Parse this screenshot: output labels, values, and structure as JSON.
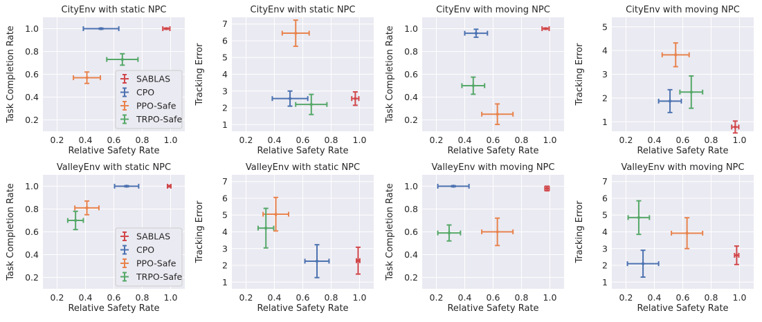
{
  "colors": {
    "SABLAS": "#d1474a",
    "CPO": "#4c72b0",
    "PPO-Safe": "#e8834d",
    "TRPO-Safe": "#55a868",
    "background": "#eaeaf2"
  },
  "chart_data": [
    {
      "type": "scatter",
      "title": "CityEnv with static NPC",
      "xlabel": "Relative Safety Rate",
      "ylabel": "Task Completion Rate",
      "xlim": [
        0.1,
        1.1
      ],
      "ylim": [
        0.1,
        1.1
      ],
      "xticks": [
        0.2,
        0.4,
        0.6,
        0.8,
        1.0
      ],
      "yticks": [
        0.2,
        0.4,
        0.6,
        0.8,
        1.0
      ],
      "xtick_labels": [
        "0.2",
        "0.4",
        "0.6",
        "0.8",
        "1.0"
      ],
      "ytick_labels": [
        "0.2",
        "0.4",
        "0.6",
        "0.8",
        "1.0"
      ],
      "legend": "lower-right",
      "legend_entries": [
        "SABLAS",
        "CPO",
        "PPO-Safe",
        "TRPO-Safe"
      ],
      "series": [
        {
          "name": "SABLAS",
          "x": 0.97,
          "y": 1.0,
          "xerr": 0.025,
          "yerr": 0.005
        },
        {
          "name": "CPO",
          "x": 0.51,
          "y": 1.0,
          "xerr": 0.125,
          "yerr": 0.005
        },
        {
          "name": "PPO-Safe",
          "x": 0.41,
          "y": 0.57,
          "xerr": 0.095,
          "yerr": 0.05
        },
        {
          "name": "TRPO-Safe",
          "x": 0.66,
          "y": 0.73,
          "xerr": 0.11,
          "yerr": 0.05
        }
      ]
    },
    {
      "type": "scatter",
      "title": "CityEnv with static NPC",
      "xlabel": "Relative Safety Rate",
      "ylabel": "Tracking Error",
      "xlim": [
        0.1,
        1.1
      ],
      "ylim": [
        0.6,
        7.4
      ],
      "xticks": [
        0.2,
        0.4,
        0.6,
        0.8,
        1.0
      ],
      "yticks": [
        1,
        2,
        3,
        4,
        5,
        6,
        7
      ],
      "xtick_labels": [
        "0.2",
        "0.4",
        "0.6",
        "0.8",
        "1.0"
      ],
      "ytick_labels": [
        "1",
        "2",
        "3",
        "4",
        "5",
        "6",
        "7"
      ],
      "series": [
        {
          "name": "SABLAS",
          "x": 0.97,
          "y": 2.55,
          "xerr": 0.025,
          "yerr": 0.4
        },
        {
          "name": "CPO",
          "x": 0.51,
          "y": 2.55,
          "xerr": 0.125,
          "yerr": 0.45
        },
        {
          "name": "PPO-Safe",
          "x": 0.55,
          "y": 6.45,
          "xerr": 0.095,
          "yerr": 0.78
        },
        {
          "name": "TRPO-Safe",
          "x": 0.66,
          "y": 2.2,
          "xerr": 0.11,
          "yerr": 0.6
        }
      ]
    },
    {
      "type": "scatter",
      "title": "CityEnv with moving NPC",
      "xlabel": "Relative Safety Rate",
      "ylabel": "Task Completion Rate",
      "xlim": [
        0.1,
        1.1
      ],
      "ylim": [
        0.1,
        1.1
      ],
      "xticks": [
        0.2,
        0.4,
        0.6,
        0.8,
        1.0
      ],
      "yticks": [
        0.2,
        0.4,
        0.6,
        0.8,
        1.0
      ],
      "xtick_labels": [
        "0.2",
        "0.4",
        "0.6",
        "0.8",
        "1.0"
      ],
      "ytick_labels": [
        "0.2",
        "0.4",
        "0.6",
        "0.8",
        "1.0"
      ],
      "series": [
        {
          "name": "SABLAS",
          "x": 0.97,
          "y": 1.0,
          "xerr": 0.025,
          "yerr": 0.005
        },
        {
          "name": "CPO",
          "x": 0.48,
          "y": 0.96,
          "xerr": 0.08,
          "yerr": 0.035
        },
        {
          "name": "PPO-Safe",
          "x": 0.63,
          "y": 0.25,
          "xerr": 0.11,
          "yerr": 0.09
        },
        {
          "name": "TRPO-Safe",
          "x": 0.46,
          "y": 0.5,
          "xerr": 0.08,
          "yerr": 0.075
        }
      ]
    },
    {
      "type": "scatter",
      "title": "CityEnv with moving NPC",
      "xlabel": "Relative Safety Rate",
      "ylabel": "Tracking Error",
      "xlim": [
        0.1,
        1.1
      ],
      "ylim": [
        0.6,
        5.4
      ],
      "xticks": [
        0.2,
        0.4,
        0.6,
        0.8,
        1.0
      ],
      "yticks": [
        1,
        2,
        3,
        4,
        5
      ],
      "xtick_labels": [
        "0.2",
        "0.4",
        "0.6",
        "0.8",
        "1.0"
      ],
      "ytick_labels": [
        "1",
        "2",
        "3",
        "4",
        "5"
      ],
      "series": [
        {
          "name": "SABLAS",
          "x": 0.97,
          "y": 0.78,
          "xerr": 0.025,
          "yerr": 0.25
        },
        {
          "name": "CPO",
          "x": 0.51,
          "y": 1.87,
          "xerr": 0.08,
          "yerr": 0.48
        },
        {
          "name": "PPO-Safe",
          "x": 0.55,
          "y": 3.82,
          "xerr": 0.095,
          "yerr": 0.5
        },
        {
          "name": "TRPO-Safe",
          "x": 0.66,
          "y": 2.25,
          "xerr": 0.08,
          "yerr": 0.68
        }
      ]
    },
    {
      "type": "scatter",
      "title": "ValleyEnv with static NPC",
      "xlabel": "Relative Safety Rate",
      "ylabel": "Task Completion Rate",
      "xlim": [
        0.1,
        1.1
      ],
      "ylim": [
        0.1,
        1.1
      ],
      "xticks": [
        0.2,
        0.4,
        0.6,
        0.8,
        1.0
      ],
      "yticks": [
        0.2,
        0.4,
        0.6,
        0.8,
        1.0
      ],
      "xtick_labels": [
        "0.2",
        "0.4",
        "0.6",
        "0.8",
        "1.0"
      ],
      "ytick_labels": [
        "0.2",
        "0.4",
        "0.6",
        "0.8",
        "1.0"
      ],
      "legend": "lower-right",
      "legend_entries": [
        "SABLAS",
        "CPO",
        "PPO-Safe",
        "TRPO-Safe"
      ],
      "series": [
        {
          "name": "SABLAS",
          "x": 0.99,
          "y": 1.0,
          "xerr": 0.012,
          "yerr": 0.005
        },
        {
          "name": "CPO",
          "x": 0.69,
          "y": 1.0,
          "xerr": 0.085,
          "yerr": 0.005
        },
        {
          "name": "PPO-Safe",
          "x": 0.41,
          "y": 0.81,
          "xerr": 0.085,
          "yerr": 0.06
        },
        {
          "name": "TRPO-Safe",
          "x": 0.33,
          "y": 0.7,
          "xerr": 0.055,
          "yerr": 0.08
        }
      ]
    },
    {
      "type": "scatter",
      "title": "ValleyEnv with static NPC",
      "xlabel": "Relative Safety Rate",
      "ylabel": "Tracking Error",
      "xlim": [
        0.1,
        1.1
      ],
      "ylim": [
        0.6,
        7.4
      ],
      "xticks": [
        0.2,
        0.4,
        0.6,
        0.8,
        1.0
      ],
      "yticks": [
        1,
        2,
        3,
        4,
        5,
        6,
        7
      ],
      "xtick_labels": [
        "0.2",
        "0.4",
        "0.6",
        "0.8",
        "1.0"
      ],
      "ytick_labels": [
        "1",
        "2",
        "3",
        "4",
        "5",
        "6",
        "7"
      ],
      "series": [
        {
          "name": "SABLAS",
          "x": 0.99,
          "y": 2.28,
          "xerr": 0.012,
          "yerr": 0.8
        },
        {
          "name": "CPO",
          "x": 0.7,
          "y": 2.25,
          "xerr": 0.085,
          "yerr": 0.98
        },
        {
          "name": "PPO-Safe",
          "x": 0.41,
          "y": 5.05,
          "xerr": 0.09,
          "yerr": 1.0
        },
        {
          "name": "TRPO-Safe",
          "x": 0.34,
          "y": 4.22,
          "xerr": 0.055,
          "yerr": 1.18
        }
      ]
    },
    {
      "type": "scatter",
      "title": "ValleyEnv with moving NPC",
      "xlabel": "Relative Safety Rate",
      "ylabel": "Task Completion Rate",
      "xlim": [
        0.1,
        1.1
      ],
      "ylim": [
        0.1,
        1.1
      ],
      "xticks": [
        0.2,
        0.4,
        0.6,
        0.8,
        1.0
      ],
      "yticks": [
        0.2,
        0.4,
        0.6,
        0.8,
        1.0
      ],
      "xtick_labels": [
        "0.2",
        "0.4",
        "0.6",
        "0.8",
        "1.0"
      ],
      "ytick_labels": [
        "0.2",
        "0.4",
        "0.6",
        "0.8",
        "1.0"
      ],
      "series": [
        {
          "name": "SABLAS",
          "x": 0.98,
          "y": 0.98,
          "xerr": 0.015,
          "yerr": 0.02
        },
        {
          "name": "CPO",
          "x": 0.32,
          "y": 1.0,
          "xerr": 0.11,
          "yerr": 0.005
        },
        {
          "name": "PPO-Safe",
          "x": 0.63,
          "y": 0.6,
          "xerr": 0.11,
          "yerr": 0.12
        },
        {
          "name": "TRPO-Safe",
          "x": 0.29,
          "y": 0.59,
          "xerr": 0.08,
          "yerr": 0.07
        }
      ]
    },
    {
      "type": "scatter",
      "title": "ValleyEnv with moving NPC",
      "xlabel": "Relative Safety Rate",
      "ylabel": "Tracking Error",
      "xlim": [
        0.1,
        1.1
      ],
      "ylim": [
        0.6,
        7.4
      ],
      "xticks": [
        0.2,
        0.4,
        0.6,
        0.8,
        1.0
      ],
      "yticks": [
        1,
        2,
        3,
        4,
        5,
        6,
        7
      ],
      "xtick_labels": [
        "0.2",
        "0.4",
        "0.6",
        "0.8",
        "1.0"
      ],
      "ytick_labels": [
        "1",
        "2",
        "3",
        "4",
        "5",
        "6",
        "7"
      ],
      "series": [
        {
          "name": "SABLAS",
          "x": 0.98,
          "y": 2.6,
          "xerr": 0.015,
          "yerr": 0.55
        },
        {
          "name": "CPO",
          "x": 0.32,
          "y": 2.1,
          "xerr": 0.11,
          "yerr": 0.8
        },
        {
          "name": "PPO-Safe",
          "x": 0.63,
          "y": 3.92,
          "xerr": 0.11,
          "yerr": 0.92
        },
        {
          "name": "TRPO-Safe",
          "x": 0.29,
          "y": 4.85,
          "xerr": 0.075,
          "yerr": 1.0
        }
      ]
    }
  ]
}
